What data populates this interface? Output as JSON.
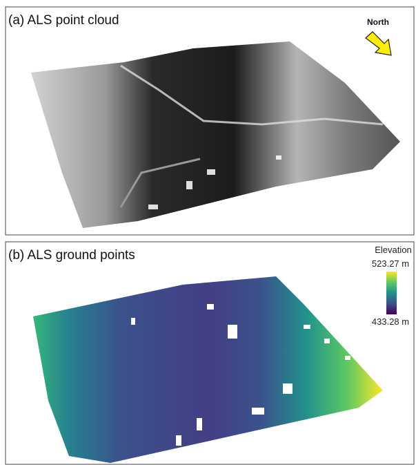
{
  "panel_a": {
    "title": "(a) ALS point cloud",
    "north_label": "North"
  },
  "panel_b": {
    "title": "(b) ALS ground points",
    "legend": {
      "title": "Elevation",
      "max_label": "523.27 m",
      "min_label": "433.28 m"
    }
  }
}
